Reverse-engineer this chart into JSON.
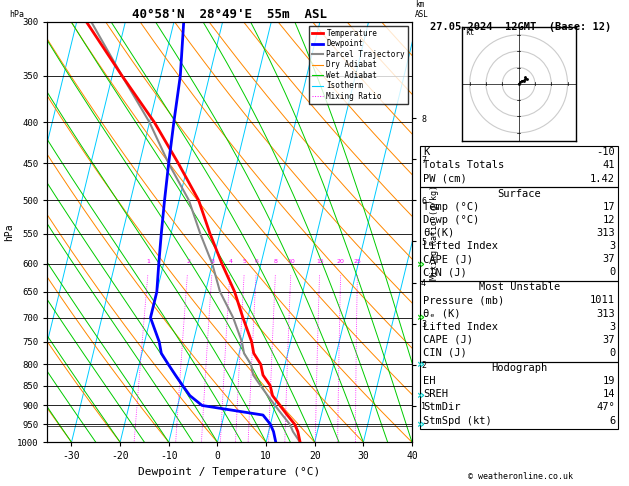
{
  "title_left": "40°58'N  28°49'E  55m  ASL",
  "title_right": "27.05.2024  12GMT  (Base: 12)",
  "ylabel_left": "hPa",
  "xlabel": "Dewpoint / Temperature (°C)",
  "pressure_levels": [
    300,
    350,
    400,
    450,
    500,
    550,
    600,
    650,
    700,
    750,
    800,
    850,
    900,
    950,
    1000
  ],
  "pressure_min": 300,
  "pressure_max": 1000,
  "temp_min": -35,
  "temp_max": 40,
  "skew_factor": 0.0,
  "bg_color": "#ffffff",
  "plot_bg": "#ffffff",
  "isotherm_color": "#00ccff",
  "dry_adiabat_color": "#ff8800",
  "wet_adiabat_color": "#00cc00",
  "mixing_ratio_color": "#ff00ff",
  "mixing_ratio_values": [
    1,
    2,
    3,
    4,
    5,
    6,
    8,
    10,
    15,
    20,
    25
  ],
  "temperature_profile": {
    "pressure": [
      1000,
      970,
      950,
      925,
      900,
      875,
      850,
      825,
      800,
      775,
      750,
      700,
      650,
      600,
      550,
      500,
      450,
      400,
      350,
      300
    ],
    "temp": [
      17,
      16,
      15,
      13,
      11,
      9,
      8,
      6,
      5,
      3,
      2,
      -1,
      -4,
      -8,
      -12,
      -16,
      -22,
      -29,
      -38,
      -48
    ]
  },
  "dewpoint_profile": {
    "pressure": [
      1000,
      970,
      950,
      925,
      900,
      875,
      850,
      825,
      800,
      775,
      750,
      700,
      650,
      600,
      550,
      500,
      450,
      400,
      350,
      300
    ],
    "dewp": [
      12,
      11,
      10,
      8,
      -5,
      -8,
      -10,
      -12,
      -14,
      -16,
      -17,
      -20,
      -20,
      -21,
      -22,
      -23,
      -24,
      -25,
      -26,
      -28
    ]
  },
  "parcel_profile": {
    "pressure": [
      1000,
      970,
      950,
      925,
      900,
      875,
      850,
      825,
      800,
      775,
      750,
      700,
      650,
      600,
      550,
      500,
      450,
      400,
      350,
      300
    ],
    "temp": [
      17,
      15,
      14,
      12,
      10,
      8,
      6,
      4,
      3,
      1,
      0,
      -3,
      -7,
      -10,
      -14,
      -18,
      -24,
      -30,
      -38,
      -47
    ]
  },
  "temp_color": "#ff0000",
  "dewp_color": "#0000ff",
  "parcel_color": "#888888",
  "lcl_pressure": 955,
  "info_table": {
    "K": "-10",
    "Totals Totals": "41",
    "PW (cm)": "1.42",
    "Temp_surf": "17",
    "Dewp_surf": "12",
    "theta_e_surf": "313",
    "LI_surf": "3",
    "CAPE_surf": "37",
    "CIN_surf": "0",
    "Pressure_mu": "1011",
    "theta_e_mu": "313",
    "LI_mu": "3",
    "CAPE_mu": "37",
    "CIN_mu": "0",
    "EH": "19",
    "SREH": "14",
    "StmDir": "47°",
    "StmSpd": "6"
  },
  "copyright": "© weatheronline.co.uk",
  "chevron_pressures": [
    600,
    700,
    800,
    875,
    950
  ],
  "chevron_colors": [
    "#00cc00",
    "#00cc00",
    "#00cccc",
    "#00cccc",
    "#00cccc"
  ]
}
